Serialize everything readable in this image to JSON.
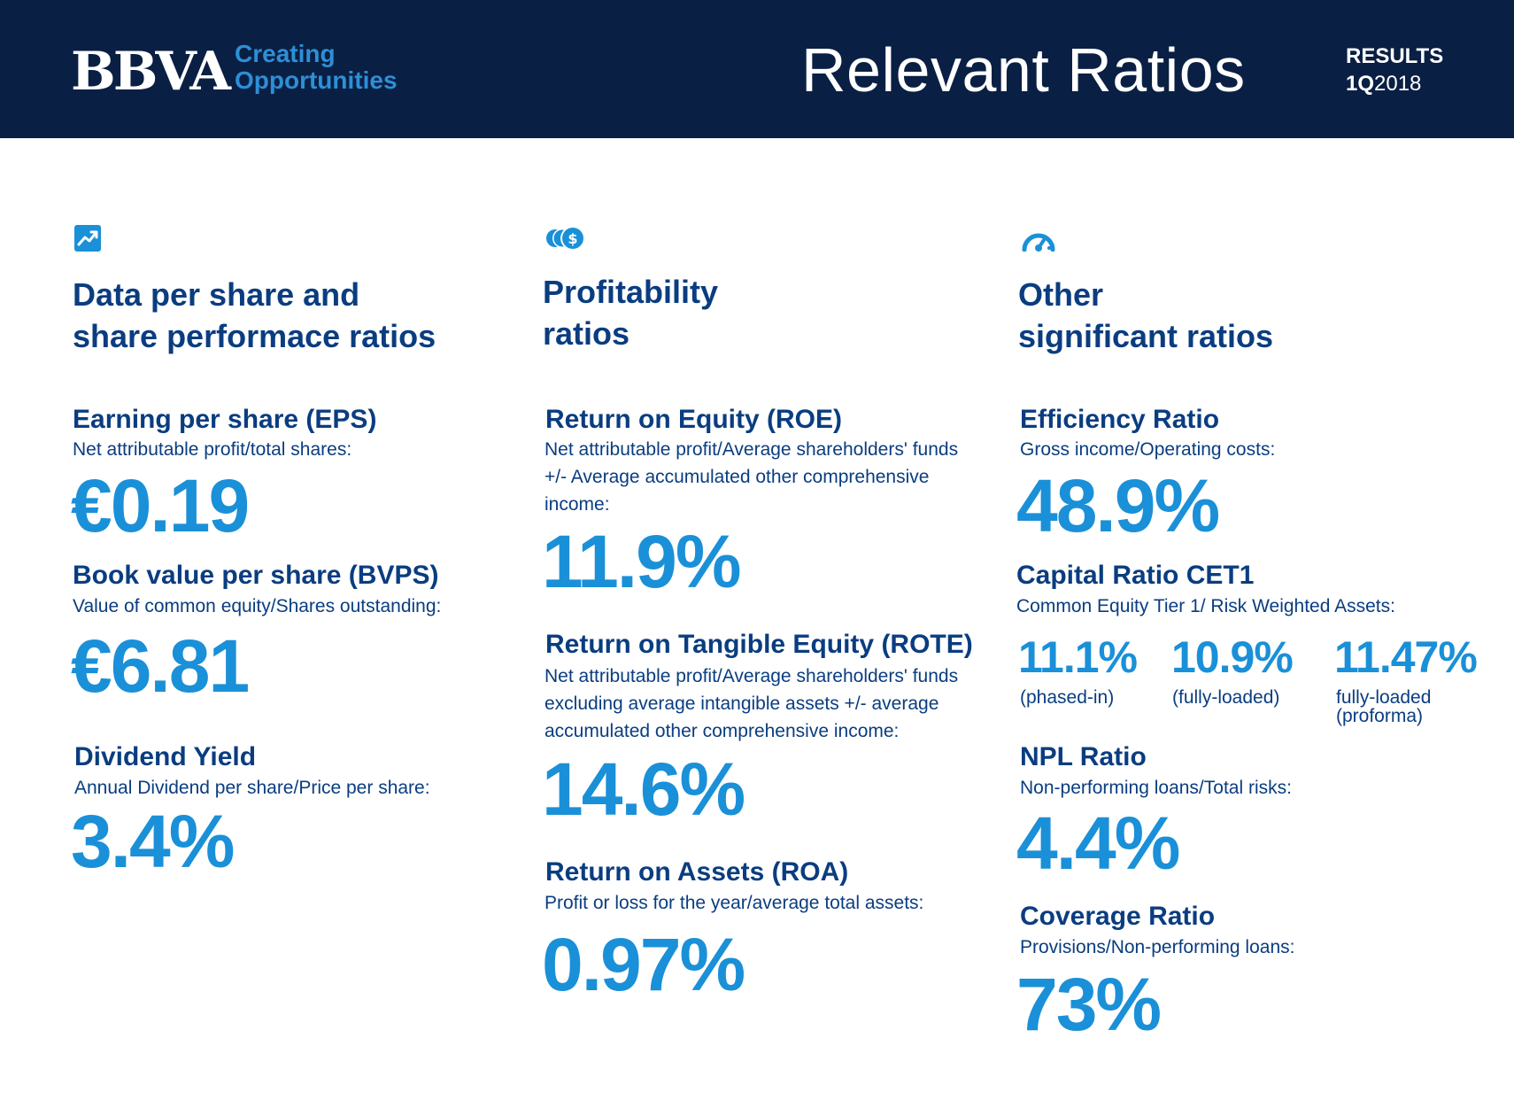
{
  "header": {
    "logo": "BBVA",
    "tagline_line1": "Creating",
    "tagline_line2": "Opportunities",
    "title": "Relevant Ratios",
    "results_label": "RESULTS",
    "results_quarter": "1Q",
    "results_year": "2018"
  },
  "columns": [
    {
      "icon": "trend-chart-icon",
      "heading_line1": "Data per share and",
      "heading_line2": "share performace ratios",
      "ratios": [
        {
          "title": "Earning per share (EPS)",
          "description": "Net attributable profit/total shares:",
          "value": "€0.19"
        },
        {
          "title": "Book value per share (BVPS)",
          "description": "Value of common equity/Shares outstanding:",
          "value": "€6.81"
        },
        {
          "title": "Dividend Yield",
          "description": "Annual Dividend per share/Price per share:",
          "value": "3.4%"
        }
      ]
    },
    {
      "icon": "coins-dollar-icon",
      "heading_line1": "Profitability",
      "heading_line2": "ratios",
      "ratios": [
        {
          "title": "Return on Equity (ROE)",
          "description_lines": [
            "Net attributable profit/Average shareholders' funds",
            "+/- Average accumulated other comprehensive",
            "income:"
          ],
          "value": "11.9%"
        },
        {
          "title": "Return on Tangible Equity (ROTE)",
          "description_lines": [
            "Net attributable profit/Average shareholders' funds",
            "excluding average intangible assets  +/- average",
            "accumulated other comprehensive income:"
          ],
          "value": "14.6%"
        },
        {
          "title": "Return on Assets (ROA)",
          "description_lines": [
            "Profit or loss for the year/average total assets:"
          ],
          "value": "0.97%"
        }
      ]
    },
    {
      "icon": "speedometer-icon",
      "heading_line1": "Other",
      "heading_line2": "significant ratios",
      "efficiency": {
        "title": "Efficiency Ratio",
        "description": "Gross income/Operating costs:",
        "value": "48.9%"
      },
      "capital": {
        "title": "Capital Ratio CET1",
        "description": "Common Equity Tier 1/ Risk Weighted Assets:",
        "items": [
          {
            "value": "11.1%",
            "label_lines": [
              "(phased-in)"
            ]
          },
          {
            "value": "10.9%",
            "label_lines": [
              "(fully-loaded)"
            ]
          },
          {
            "value": "11.47%",
            "label_lines": [
              "fully-loaded",
              "(proforma)"
            ]
          }
        ]
      },
      "npl": {
        "title": "NPL Ratio",
        "description": "Non-performing loans/Total risks:",
        "value": "4.4%"
      },
      "coverage": {
        "title": "Coverage Ratio",
        "description": "Provisions/Non-performing loans:",
        "value": "73%"
      }
    }
  ],
  "colors": {
    "header_bg": "#0a1f44",
    "heading": "#0a3d80",
    "value": "#1a90d8",
    "tagline": "#2d8fd6"
  }
}
